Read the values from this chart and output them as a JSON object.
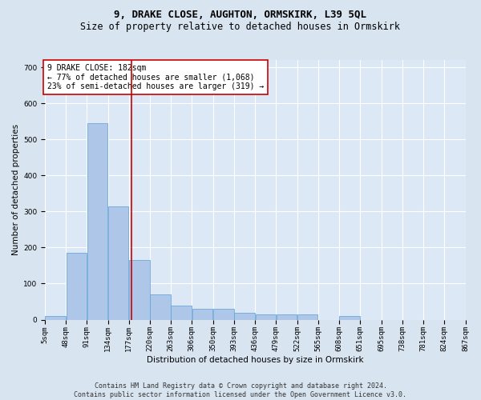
{
  "title": "9, DRAKE CLOSE, AUGHTON, ORMSKIRK, L39 5QL",
  "subtitle": "Size of property relative to detached houses in Ormskirk",
  "xlabel": "Distribution of detached houses by size in Ormskirk",
  "ylabel": "Number of detached properties",
  "footer_line1": "Contains HM Land Registry data © Crown copyright and database right 2024.",
  "footer_line2": "Contains public sector information licensed under the Open Government Licence v3.0.",
  "annotation_line1": "9 DRAKE CLOSE: 182sqm",
  "annotation_line2": "← 77% of detached houses are smaller (1,068)",
  "annotation_line3": "23% of semi-detached houses are larger (319) →",
  "bar_left_edges": [
    5,
    48,
    91,
    134,
    177,
    220,
    263,
    306,
    350,
    393,
    436,
    479,
    522,
    565,
    608,
    651,
    695,
    738,
    781,
    824
  ],
  "bar_widths": [
    43,
    43,
    43,
    43,
    43,
    43,
    43,
    43,
    43,
    43,
    43,
    43,
    43,
    43,
    43,
    43,
    43,
    43,
    43,
    43
  ],
  "bar_heights": [
    10,
    185,
    545,
    315,
    165,
    70,
    40,
    30,
    30,
    20,
    15,
    15,
    15,
    0,
    10,
    0,
    0,
    0,
    0,
    0
  ],
  "bar_color": "#aec6e8",
  "bar_edge_color": "#5a9fd4",
  "vline_x": 182,
  "vline_color": "#cc0000",
  "ylim": [
    0,
    720
  ],
  "yticks": [
    0,
    100,
    200,
    300,
    400,
    500,
    600,
    700
  ],
  "xlim": [
    5,
    867
  ],
  "xtick_labels": [
    "5sqm",
    "48sqm",
    "91sqm",
    "134sqm",
    "177sqm",
    "220sqm",
    "263sqm",
    "306sqm",
    "350sqm",
    "393sqm",
    "436sqm",
    "479sqm",
    "522sqm",
    "565sqm",
    "608sqm",
    "651sqm",
    "695sqm",
    "738sqm",
    "781sqm",
    "824sqm",
    "867sqm"
  ],
  "xtick_positions": [
    5,
    48,
    91,
    134,
    177,
    220,
    263,
    306,
    350,
    393,
    436,
    479,
    522,
    565,
    608,
    651,
    695,
    738,
    781,
    824,
    867
  ],
  "bg_color": "#d8e4f0",
  "plot_bg_color": "#dce8f5",
  "grid_color": "#ffffff",
  "annotation_box_color": "#cc0000",
  "annotation_box_bg": "#ffffff",
  "title_fontsize": 9,
  "subtitle_fontsize": 8.5,
  "axis_label_fontsize": 7.5,
  "tick_fontsize": 6.5,
  "footer_fontsize": 6,
  "annotation_fontsize": 7
}
